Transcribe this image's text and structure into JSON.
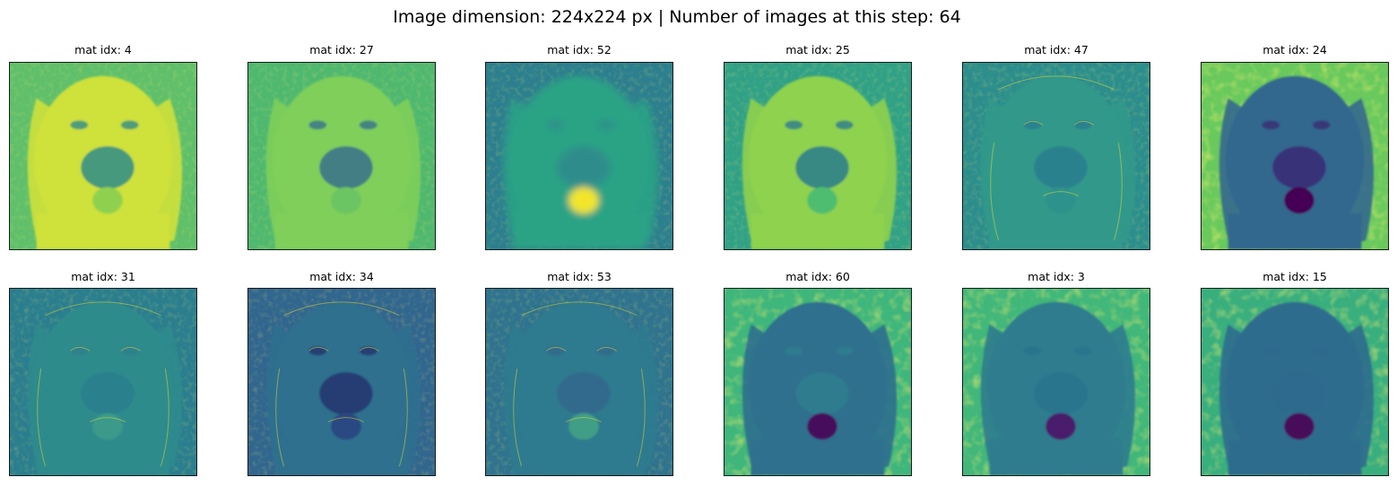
{
  "figure_title": "Image dimension: 224x224 px | Number of images at this step: 64",
  "colormap": [
    "#440154",
    "#3b528b",
    "#21918c",
    "#5ec962",
    "#fde725"
  ],
  "panels": [
    {
      "label": "mat idx: 4",
      "style": "bright",
      "bg": "#5fbf6a",
      "fg": "#cfe13a",
      "nose": "#2e8c8a",
      "tongue": "#8fd14f"
    },
    {
      "label": "mat idx: 27",
      "style": "bright",
      "bg": "#4fb86f",
      "fg": "#7fcf5a",
      "nose": "#37708c",
      "tongue": "#6cc563"
    },
    {
      "label": "mat idx: 52",
      "style": "blur",
      "bg": "#2c7f8e",
      "fg": "#2aa385",
      "nose": "#2f8a8c",
      "tongue": "#f2e52a"
    },
    {
      "label": "mat idx: 25",
      "style": "bright",
      "bg": "#31a186",
      "fg": "#8fd24e",
      "nose": "#2a7b8e",
      "tongue": "#4fbd6f"
    },
    {
      "label": "mat idx: 47",
      "style": "emboss",
      "bg": "#2c8e8c",
      "fg": "#31998a",
      "nose": "#2a7c8e",
      "tongue": "#2e928c"
    },
    {
      "label": "mat idx: 24",
      "style": "darkface",
      "bg": "#69c95d",
      "fg": "#33688e",
      "nose": "#3b2a74",
      "tongue": "#440154"
    },
    {
      "label": "mat idx: 31",
      "style": "emboss",
      "bg": "#2a7e8e",
      "fg": "#2d8b8c",
      "nose": "#2d7e8d",
      "tongue": "#3a9a8a"
    },
    {
      "label": "mat idx: 34",
      "style": "emboss",
      "bg": "#31668e",
      "fg": "#2f6f8e",
      "nose": "#27366f",
      "tongue": "#2b4a82"
    },
    {
      "label": "mat idx: 53",
      "style": "emboss",
      "bg": "#2f738e",
      "fg": "#2f7a8e",
      "nose": "#31698d",
      "tongue": "#3f9e87"
    },
    {
      "label": "mat idx: 60",
      "style": "darkface",
      "bg": "#3fb67b",
      "fg": "#2f6f8e",
      "nose": "#2d7f8e",
      "tongue": "#460a5d"
    },
    {
      "label": "mat idx: 3",
      "style": "darkface",
      "bg": "#42b77a",
      "fg": "#2f7c8e",
      "nose": "#2c738e",
      "tongue": "#481a6c"
    },
    {
      "label": "mat idx: 15",
      "style": "darkface",
      "bg": "#3aaf7e",
      "fg": "#2f6c8e",
      "nose": "#2f698e",
      "tongue": "#46075a"
    }
  ]
}
